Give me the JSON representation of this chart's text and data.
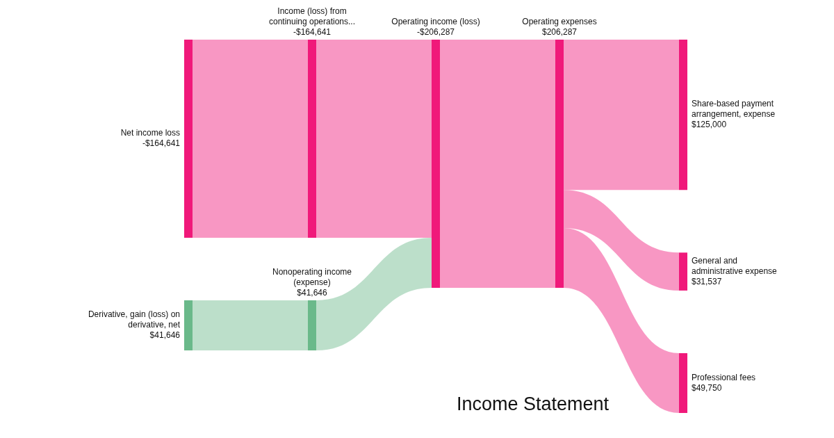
{
  "chart_data": {
    "type": "other",
    "title": "Income Statement",
    "categories": [
      "Net income loss",
      "Derivative, gain (loss) on derivative, net",
      "Income (loss) from continuing operations...",
      "Nonoperating income (expense)",
      "Operating income (loss)",
      "Operating expenses",
      "Share-based payment arrangement, expense",
      "General and administrative expense",
      "Professional fees"
    ],
    "values": [
      -164641,
      41646,
      -164641,
      41646,
      -206287,
      206287,
      125000,
      31537,
      49750
    ],
    "value_labels": [
      "-$164,641",
      "$41,646",
      "-$164,641",
      "$41,646",
      "-$206,287",
      "$206,287",
      "$125,000",
      "$31,537",
      "$49,750"
    ],
    "colors": [
      "#f0197a",
      "#6ab98a",
      "#f0197a",
      "#6ab98a",
      "#f0197a",
      "#f0197a",
      "#f0197a",
      "#f0197a",
      "#f0197a"
    ]
  }
}
